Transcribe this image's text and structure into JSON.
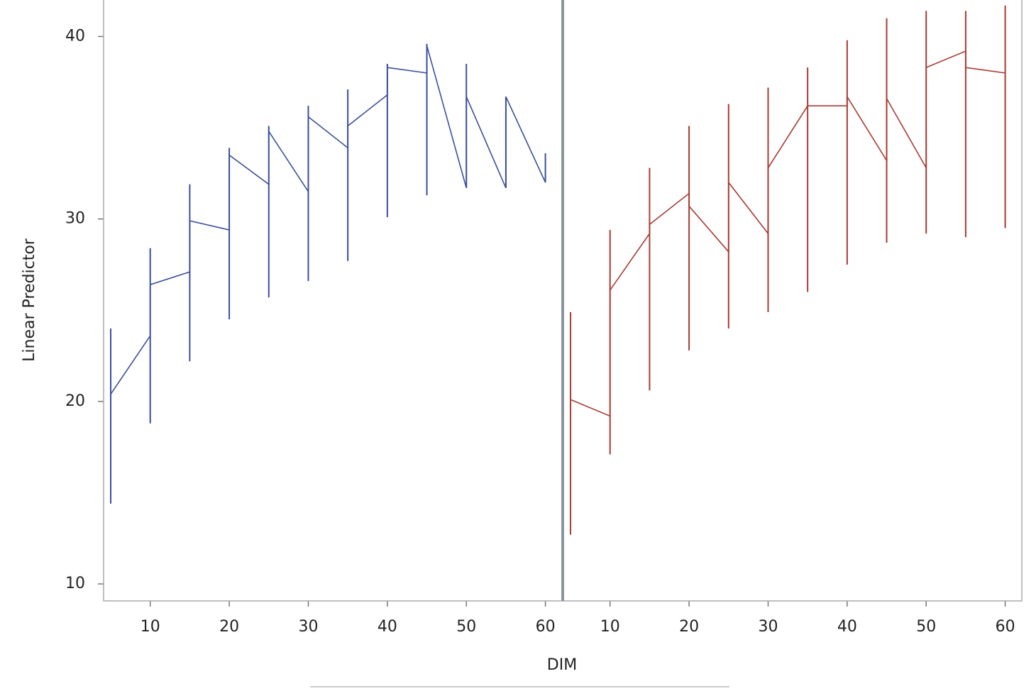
{
  "chart_data": {
    "type": "panels",
    "y_label": "Linear Predictor",
    "x_label": "DIM",
    "ylim": [
      9.07,
      42
    ],
    "yticks": [
      10,
      20,
      30,
      40
    ],
    "panels": [
      {
        "type": "line",
        "color": "#3b4f9a",
        "xlim": [
          4.1,
          62.1
        ],
        "xticks": [
          10,
          20,
          30,
          40,
          50,
          60
        ],
        "x": [
          5,
          10,
          10,
          15,
          15,
          20,
          20,
          25,
          25,
          30,
          30,
          35,
          35,
          40,
          40,
          45,
          45,
          50,
          50,
          55,
          55,
          60
        ],
        "values": [
          20.4,
          23.6,
          26.4,
          27.1,
          29.9,
          29.4,
          33.5,
          31.9,
          34.8,
          31.5,
          35.6,
          33.9,
          35.1,
          36.8,
          38.3,
          38.0,
          39.5,
          31.7,
          36.7,
          31.7,
          36.7,
          32.0
        ],
        "spikes": {
          "x": [
            5,
            10,
            15,
            20,
            25,
            30,
            35,
            40,
            45,
            50,
            55,
            60
          ],
          "low": [
            14.4,
            18.8,
            22.2,
            24.5,
            25.7,
            26.6,
            27.7,
            30.1,
            31.3,
            31.7,
            31.7,
            32.0
          ],
          "high": [
            24.0,
            28.4,
            31.9,
            33.9,
            35.1,
            36.2,
            37.1,
            38.5,
            39.6,
            38.5,
            36.7,
            33.6
          ]
        }
      },
      {
        "type": "line",
        "color": "#a83b32",
        "xlim": [
          4.1,
          62.1
        ],
        "xticks": [
          10,
          20,
          30,
          40,
          50,
          60
        ],
        "x": [
          5,
          10,
          10,
          15,
          15,
          20,
          20,
          25,
          25,
          30,
          30,
          35,
          35,
          40,
          40,
          45,
          45,
          50,
          50,
          55,
          55,
          60
        ],
        "values": [
          20.1,
          19.2,
          26.1,
          29.2,
          29.7,
          31.4,
          30.7,
          28.2,
          32.0,
          29.2,
          32.8,
          36.2,
          36.2,
          36.2,
          36.7,
          33.2,
          36.6,
          32.8,
          38.3,
          39.2,
          38.3,
          38.0
        ],
        "spikes": {
          "x": [
            5,
            10,
            15,
            20,
            25,
            30,
            35,
            40,
            45,
            50,
            55,
            60
          ],
          "low": [
            12.7,
            17.1,
            20.6,
            22.8,
            24.0,
            24.9,
            26.0,
            27.5,
            28.7,
            29.2,
            29.0,
            29.5
          ],
          "high": [
            24.9,
            29.4,
            32.8,
            35.1,
            36.3,
            37.2,
            38.3,
            39.8,
            41.0,
            41.4,
            41.4,
            41.7
          ]
        }
      }
    ]
  }
}
